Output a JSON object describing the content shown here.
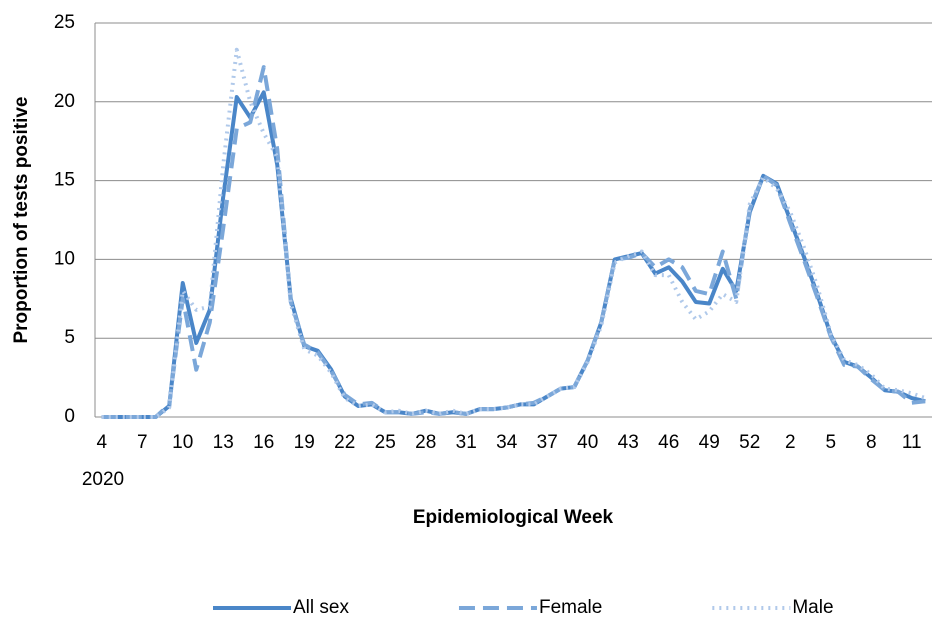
{
  "chart_data": {
    "type": "line",
    "y_label": "Proportion of tests positive",
    "x_label": "Epidemiological Week",
    "x_group_label": "2020",
    "categories": [
      "4",
      null,
      null,
      "7",
      null,
      null,
      "10",
      null,
      null,
      "13",
      null,
      null,
      "16",
      null,
      null,
      "19",
      null,
      null,
      "22",
      null,
      null,
      "25",
      null,
      null,
      "28",
      null,
      null,
      "31",
      null,
      null,
      "34",
      null,
      null,
      "37",
      null,
      null,
      "40",
      null,
      null,
      "43",
      null,
      null,
      "46",
      null,
      null,
      "49",
      null,
      null,
      "52",
      null,
      null,
      "2",
      null,
      null,
      "5",
      null,
      null,
      "8",
      null,
      null,
      "11",
      null
    ],
    "series": [
      {
        "name": "All sex",
        "color": "#4a86c8",
        "dash": "solid",
        "values": [
          0,
          0,
          0,
          0,
          0,
          0.7,
          8.5,
          4.7,
          6.8,
          14,
          20.3,
          19,
          20.6,
          16,
          7.5,
          4.5,
          4.2,
          3,
          1.3,
          0.7,
          0.8,
          0.3,
          0.3,
          0.2,
          0.4,
          0.2,
          0.3,
          0.2,
          0.5,
          0.5,
          0.6,
          0.8,
          0.8,
          1.3,
          1.8,
          1.9,
          3.6,
          6,
          10,
          10.2,
          10.4,
          9.1,
          9.5,
          8.6,
          7.3,
          7.2,
          9.4,
          8,
          13,
          15.3,
          14.8,
          12.5,
          10.2,
          7.8,
          5.2,
          3.5,
          3.2,
          2.5,
          1.7,
          1.6,
          1.2,
          1.0
        ]
      },
      {
        "name": "Female",
        "color": "#7ba7d9",
        "dash": "dash",
        "values": [
          0,
          0,
          0,
          0,
          0,
          0.8,
          7.5,
          3,
          6,
          12,
          18.3,
          18.7,
          22.2,
          17,
          7.3,
          4.6,
          4.1,
          2.9,
          1.4,
          0.8,
          0.9,
          0.3,
          0.3,
          0.2,
          0.3,
          0.2,
          0.3,
          0.2,
          0.5,
          0.5,
          0.6,
          0.8,
          0.9,
          1.3,
          1.8,
          1.9,
          3.6,
          6,
          10,
          10.1,
          10.4,
          9.5,
          10,
          9.5,
          8,
          7.8,
          10.5,
          7.5,
          13.2,
          15.3,
          14.7,
          12.3,
          10,
          7.6,
          5.1,
          3.3,
          3.2,
          2.4,
          1.7,
          1.6,
          0.9,
          1.0
        ]
      },
      {
        "name": "Male",
        "color": "#b0c9ea",
        "dash": "dot",
        "values": [
          0,
          0,
          0,
          0,
          0,
          0.6,
          8,
          6.8,
          7,
          16,
          23.3,
          20,
          18,
          16.5,
          7.2,
          4.3,
          3.9,
          2.8,
          1.2,
          0.7,
          0.8,
          0.3,
          0.4,
          0.2,
          0.4,
          0.2,
          0.4,
          0.2,
          0.5,
          0.5,
          0.6,
          0.8,
          0.8,
          1.3,
          1.8,
          1.9,
          3.5,
          5.8,
          9.8,
          10.2,
          10.5,
          9,
          9,
          7.3,
          6.2,
          6.7,
          7.8,
          7.3,
          13.5,
          15.2,
          14.5,
          13,
          10.8,
          8.3,
          5.3,
          3.6,
          3.3,
          2.7,
          1.8,
          1.7,
          1.5,
          1.2
        ]
      }
    ],
    "ylim": [
      0,
      25
    ],
    "yticks": [
      0,
      5,
      10,
      15,
      20,
      25
    ],
    "grid": true,
    "legend": "bottom"
  }
}
